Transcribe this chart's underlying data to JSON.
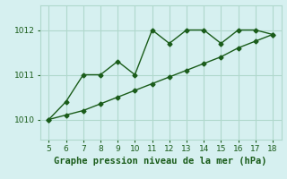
{
  "line1_x": [
    5,
    6,
    7,
    8,
    9,
    10,
    11,
    12,
    13,
    14,
    15,
    16,
    17,
    18
  ],
  "line1_y": [
    1010.0,
    1010.4,
    1011.0,
    1011.0,
    1011.3,
    1011.0,
    1012.0,
    1011.7,
    1012.0,
    1012.0,
    1011.7,
    1012.0,
    1012.0,
    1011.9
  ],
  "line2_x": [
    5,
    6,
    7,
    8,
    9,
    10,
    11,
    12,
    13,
    14,
    15,
    16,
    17,
    18
  ],
  "line2_y": [
    1010.0,
    1010.1,
    1010.2,
    1010.35,
    1010.5,
    1010.65,
    1010.8,
    1010.95,
    1011.1,
    1011.25,
    1011.4,
    1011.6,
    1011.75,
    1011.9
  ],
  "line_color": "#1a5c1a",
  "marker": "D",
  "markersize": 2.5,
  "linewidth": 1.0,
  "xlabel": "Graphe pression niveau de la mer (hPa)",
  "xlabel_color": "#1a5c1a",
  "background_color": "#d6f0f0",
  "grid_color": "#b0d8cc",
  "xlim": [
    4.5,
    18.5
  ],
  "ylim": [
    1009.55,
    1012.55
  ],
  "xticks": [
    5,
    6,
    7,
    8,
    9,
    10,
    11,
    12,
    13,
    14,
    15,
    16,
    17,
    18
  ],
  "yticks": [
    1010,
    1011,
    1012
  ],
  "tick_color": "#1a5c1a",
  "tick_fontsize": 6.5,
  "xlabel_fontsize": 7.5
}
